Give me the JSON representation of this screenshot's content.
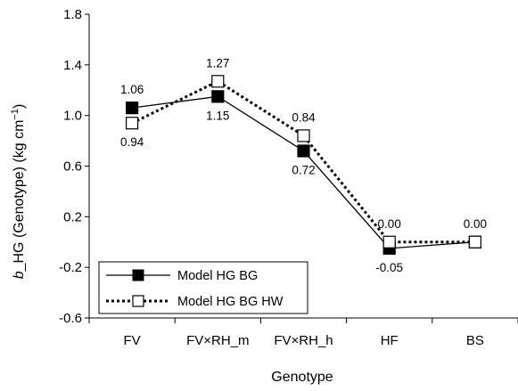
{
  "chart_data": {
    "type": "line",
    "title": "",
    "xlabel": "Genotype",
    "ylabel_prefix": "b",
    "ylabel": "_HG (Genotype) (kg cm",
    "ylabel_sup": "−1",
    "ylabel_suffix": ")",
    "categories": [
      "FV",
      "FV×RH_m",
      "FV×RH_h",
      "HF",
      "BS"
    ],
    "ylim": [
      -0.6,
      1.8
    ],
    "yticks": [
      -0.6,
      -0.2,
      0.2,
      0.6,
      1.0,
      1.4,
      1.8
    ],
    "ytick_labels": [
      "-0.6",
      "-0.2",
      "0.2",
      "0.6",
      "1.0",
      "1.4",
      "1.8"
    ],
    "grid": false,
    "legend_position": "bottom-left",
    "series": [
      {
        "name": "Model HG BG",
        "values": [
          1.06,
          1.15,
          0.72,
          -0.05,
          0.0
        ],
        "labels": [
          "1.06",
          "1.15",
          "0.72",
          "-0.05",
          ""
        ],
        "label_pos": [
          "above",
          "below",
          "below",
          "below",
          "none"
        ],
        "marker": "filled-square",
        "line": "solid",
        "color": "#000000"
      },
      {
        "name": "Model HG BG HW",
        "values": [
          0.94,
          1.27,
          0.84,
          0.0,
          0.0
        ],
        "labels": [
          "0.94",
          "1.27",
          "0.84",
          "0.00",
          "0.00"
        ],
        "label_pos": [
          "below",
          "above",
          "above",
          "above",
          "above"
        ],
        "marker": "open-square",
        "line": "dotted",
        "color": "#000000"
      }
    ]
  }
}
